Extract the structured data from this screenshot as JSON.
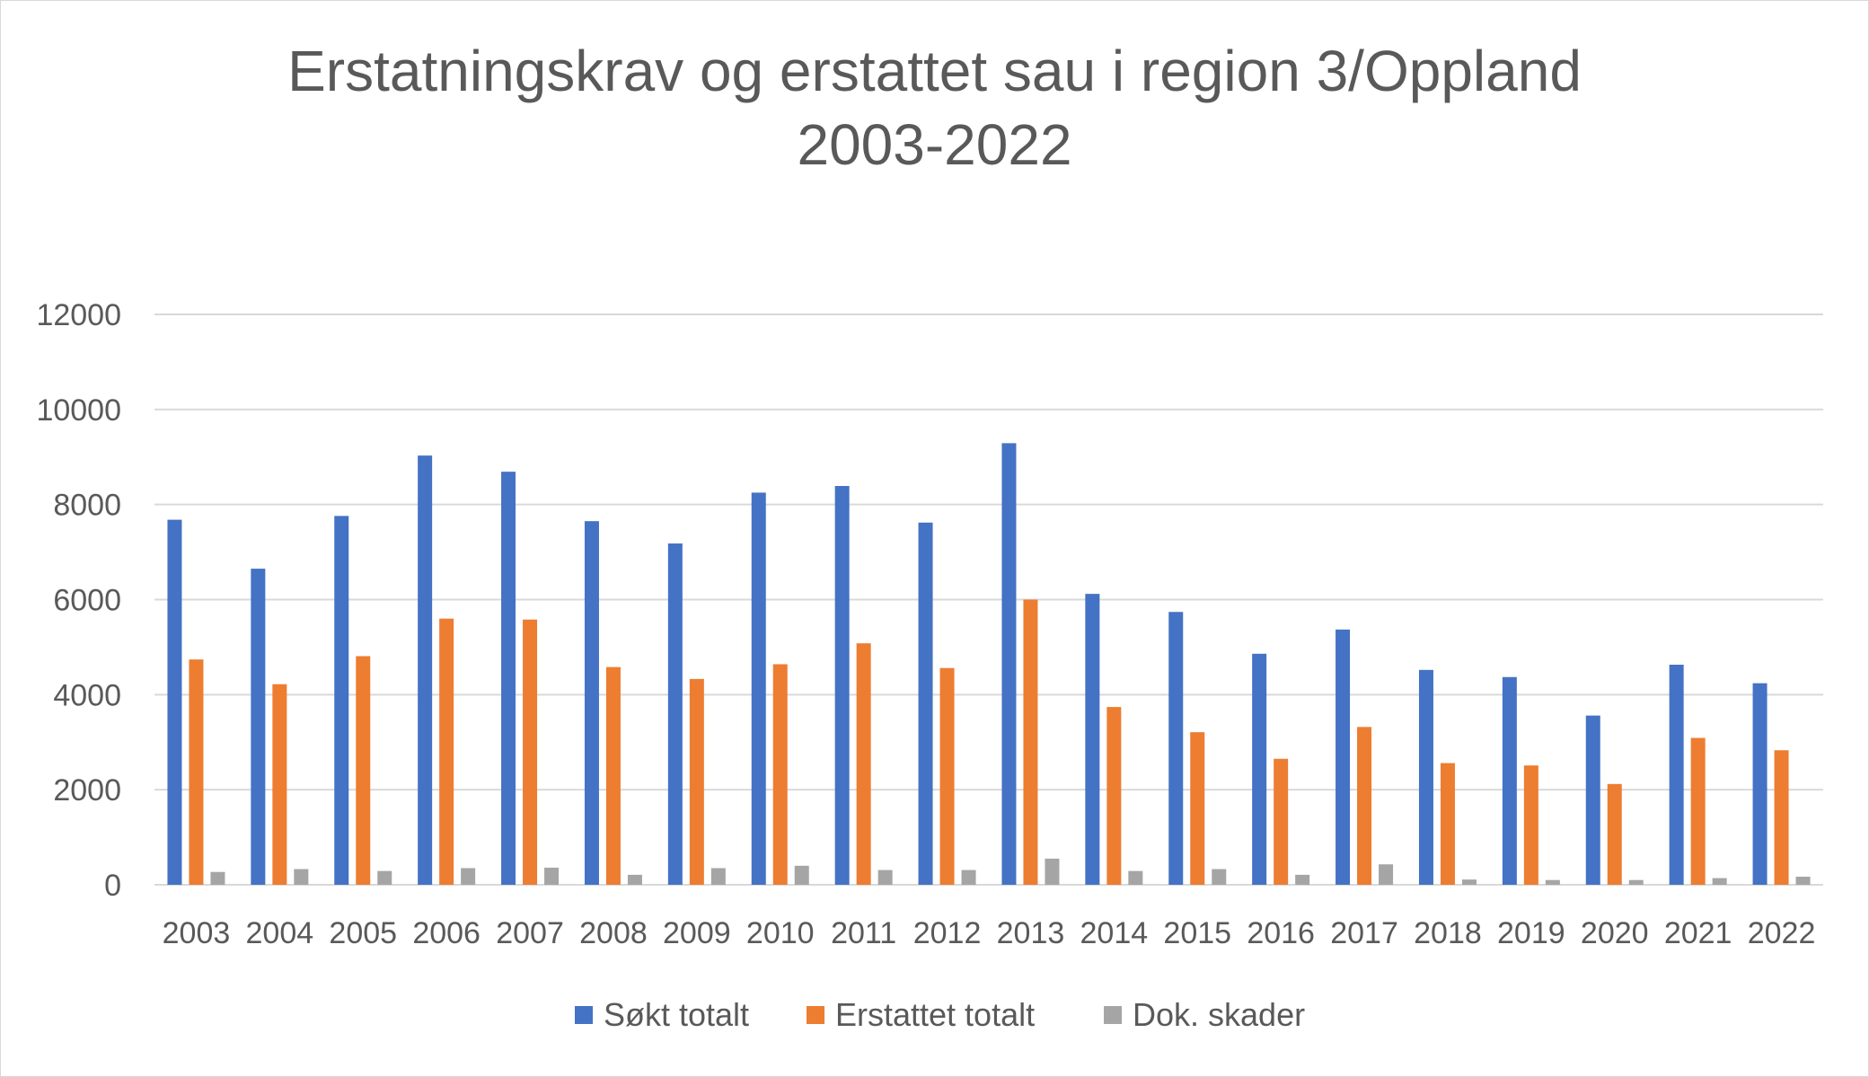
{
  "chart_data": {
    "type": "bar",
    "title_lines": [
      "Erstatningskrav og erstattet sau i region 3/Oppland",
      "2003-2022"
    ],
    "xlabel": "",
    "ylabel": "",
    "ylim": [
      0,
      12000
    ],
    "yticks": [
      0,
      2000,
      4000,
      6000,
      8000,
      10000,
      12000
    ],
    "grid": true,
    "legend_position": "bottom",
    "categories": [
      "2003",
      "2004",
      "2005",
      "2006",
      "2007",
      "2008",
      "2009",
      "2010",
      "2011",
      "2012",
      "2013",
      "2014",
      "2015",
      "2016",
      "2017",
      "2018",
      "2019",
      "2020",
      "2021",
      "2022"
    ],
    "series": [
      {
        "name": "Søkt totalt",
        "color": "#4472c4",
        "values": [
          7680,
          6650,
          7760,
          9030,
          8690,
          7650,
          7180,
          8250,
          8390,
          7620,
          9290,
          6120,
          5740,
          4860,
          5370,
          4520,
          4370,
          3560,
          4630,
          4240
        ]
      },
      {
        "name": "Erstattet totalt",
        "color": "#ed7d31",
        "values": [
          4740,
          4220,
          4810,
          5600,
          5580,
          4580,
          4330,
          4640,
          5080,
          4560,
          6000,
          3740,
          3210,
          2650,
          3320,
          2560,
          2510,
          2120,
          3090,
          2830
        ]
      },
      {
        "name": "Dok. skader",
        "color": "#a5a5a5",
        "values": [
          270,
          330,
          290,
          350,
          360,
          210,
          350,
          400,
          310,
          310,
          550,
          290,
          330,
          210,
          430,
          110,
          100,
          100,
          140,
          170
        ]
      }
    ]
  }
}
